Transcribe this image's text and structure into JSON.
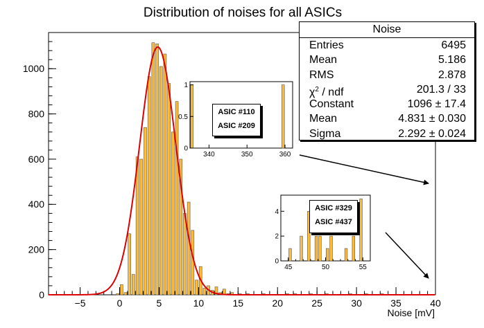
{
  "chart_data": [
    {
      "type": "bar",
      "title": "Distribution of noises for all ASICs",
      "xlabel": "Noise [mV]",
      "ylabel": "",
      "xlim": [
        -9,
        40
      ],
      "ylim": [
        0,
        1160
      ],
      "xticks": [
        -5,
        0,
        5,
        10,
        15,
        20,
        25,
        30,
        35,
        40
      ],
      "yticks": [
        0,
        200,
        400,
        600,
        800,
        1000
      ],
      "bin_width": 0.5,
      "bins": [
        {
          "x": -0.5,
          "y": 5
        },
        {
          "x": 0.0,
          "y": 45
        },
        {
          "x": 0.5,
          "y": 10
        },
        {
          "x": 1.0,
          "y": 270
        },
        {
          "x": 1.5,
          "y": 90
        },
        {
          "x": 2.0,
          "y": 610
        },
        {
          "x": 2.5,
          "y": 600
        },
        {
          "x": 3.0,
          "y": 740
        },
        {
          "x": 3.5,
          "y": 965
        },
        {
          "x": 4.0,
          "y": 1115
        },
        {
          "x": 4.5,
          "y": 1110
        },
        {
          "x": 5.0,
          "y": 1010
        },
        {
          "x": 5.5,
          "y": 1065
        },
        {
          "x": 6.0,
          "y": 935
        },
        {
          "x": 6.5,
          "y": 720
        },
        {
          "x": 7.0,
          "y": 855
        },
        {
          "x": 7.5,
          "y": 600
        },
        {
          "x": 8.0,
          "y": 360
        },
        {
          "x": 8.5,
          "y": 410
        },
        {
          "x": 9.0,
          "y": 285
        },
        {
          "x": 9.5,
          "y": 65
        },
        {
          "x": 10.0,
          "y": 125
        },
        {
          "x": 10.5,
          "y": 30
        },
        {
          "x": 11.0,
          "y": 40
        },
        {
          "x": 11.5,
          "y": 20
        },
        {
          "x": 12.0,
          "y": 35
        },
        {
          "x": 12.5,
          "y": 10
        },
        {
          "x": 13.0,
          "y": 25
        },
        {
          "x": 13.5,
          "y": 5
        },
        {
          "x": 14.0,
          "y": 10
        },
        {
          "x": 15.0,
          "y": 5
        },
        {
          "x": 16.0,
          "y": 5
        },
        {
          "x": 18.0,
          "y": 5
        },
        {
          "x": 21.0,
          "y": 5
        },
        {
          "x": 22.0,
          "y": 5
        },
        {
          "x": 24.0,
          "y": 5
        },
        {
          "x": 26.0,
          "y": 5
        },
        {
          "x": 29.0,
          "y": 5
        },
        {
          "x": 31.0,
          "y": 5
        },
        {
          "x": 33.0,
          "y": 5
        }
      ],
      "fit": {
        "type": "gaus",
        "constant": 1096,
        "mean": 4.831,
        "sigma": 2.292,
        "color": "#dd0000"
      },
      "bar_color": "#ffbb33"
    },
    {
      "type": "bar",
      "xlim": [
        335,
        362
      ],
      "ylim": [
        0,
        1.05
      ],
      "xticks": [
        340,
        350,
        360
      ],
      "yticks": [
        0,
        0.5,
        1
      ],
      "ytick_labels": [
        "0",
        "0.5",
        "1"
      ],
      "bin_width": 1,
      "bins": [
        {
          "x": 335,
          "y": 1
        },
        {
          "x": 359,
          "y": 1
        }
      ],
      "labels": [
        "ASIC #110",
        "ASIC #209"
      ]
    },
    {
      "type": "bar",
      "xlim": [
        44,
        56
      ],
      "ylim": [
        0,
        5.3
      ],
      "xticks": [
        45,
        50,
        55
      ],
      "yticks": [
        0,
        2,
        4
      ],
      "bin_width": 0.5,
      "bins": [
        {
          "x": 45.0,
          "y": 1
        },
        {
          "x": 46.5,
          "y": 2
        },
        {
          "x": 47.5,
          "y": 4
        },
        {
          "x": 48.5,
          "y": 2
        },
        {
          "x": 49.0,
          "y": 2
        },
        {
          "x": 50.0,
          "y": 1
        },
        {
          "x": 50.5,
          "y": 2
        },
        {
          "x": 52.5,
          "y": 1
        },
        {
          "x": 53.5,
          "y": 2
        },
        {
          "x": 54.5,
          "y": 5
        }
      ],
      "labels": [
        "ASIC #329",
        "ASIC #437"
      ]
    }
  ],
  "stats": {
    "title": "Noise",
    "rows": [
      {
        "label": "Entries",
        "value": "6495"
      },
      {
        "label": "Mean",
        "value": "5.186"
      },
      {
        "label": "RMS",
        "value": "2.878"
      },
      {
        "label": "ndf_label",
        "value": "201.3 / 33"
      },
      {
        "label": "Constant",
        "value": "1096 ± 17.4"
      },
      {
        "label": "Mean",
        "value": "4.831 ± 0.030"
      },
      {
        "label": "Sigma",
        "value": "2.292 ± 0.024"
      }
    ],
    "chi_symbol": "χ",
    "chi_sup": "2",
    "chi_tail": " / ndf"
  }
}
